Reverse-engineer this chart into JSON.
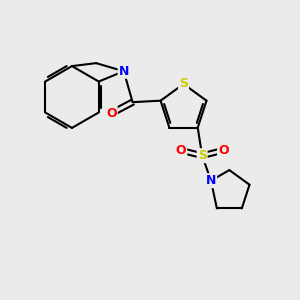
{
  "bg_color": "#ebebeb",
  "atom_colors": {
    "C": "#000000",
    "N": "#0000ff",
    "O": "#ff0000",
    "S": "#cccc00"
  },
  "line_color": "#000000",
  "line_width": 1.5,
  "font_size": 9,
  "fig_size": [
    3.0,
    3.0
  ],
  "dpi": 100,
  "xlim": [
    0,
    10
  ],
  "ylim": [
    0,
    10
  ]
}
